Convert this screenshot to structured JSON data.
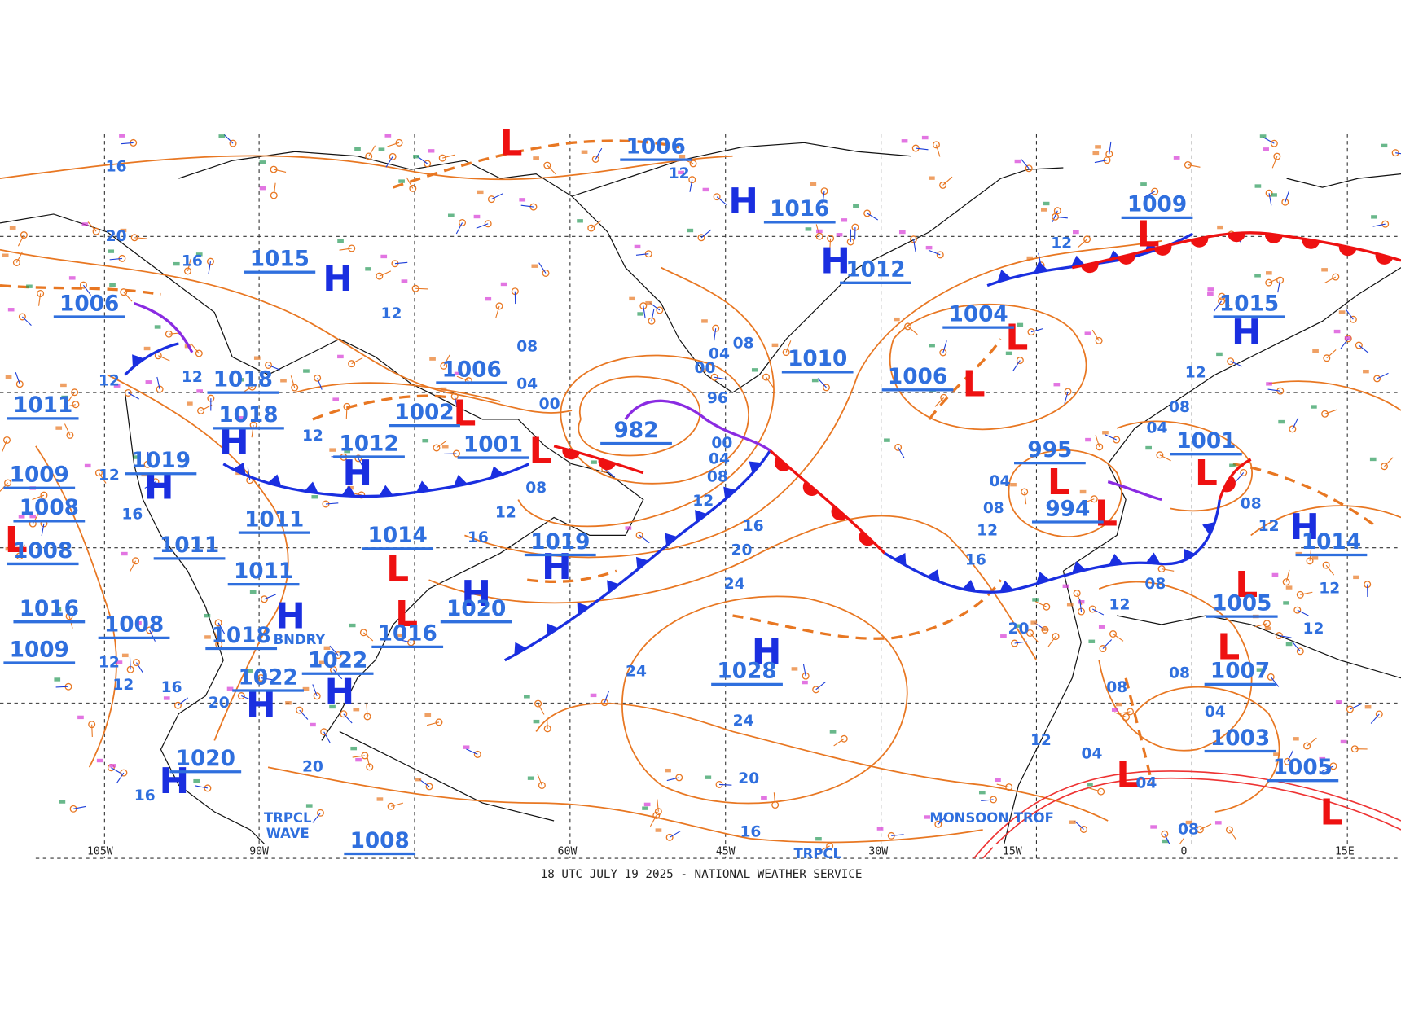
{
  "map": {
    "footer": "18 UTC JULY 19 2025 - NATIONAL WEATHER SERVICE",
    "longitude_labels": [
      "105W",
      "90W",
      "60W",
      "45W",
      "30W",
      "15W",
      "0",
      "15E"
    ],
    "centers": [
      "H",
      "H",
      "H",
      "H",
      "H",
      "H",
      "H",
      "H",
      "H",
      "H",
      "H",
      "H",
      "H",
      "H",
      "H",
      "L",
      "L",
      "L",
      "L",
      "L",
      "L",
      "L",
      "L",
      "L",
      "L",
      "L",
      "L",
      "L",
      "L",
      "L",
      "L"
    ],
    "pressure_labels": [
      "1006",
      "1016",
      "1015",
      "1012",
      "1009",
      "1015",
      "1006",
      "1004",
      "1010",
      "1006",
      "1006",
      "1018",
      "1011",
      "1002",
      "1018",
      "982",
      "1001",
      "1012",
      "1001",
      "995",
      "1019",
      "1009",
      "1008",
      "994",
      "1011",
      "1014",
      "1019",
      "1014",
      "1011",
      "1008",
      "1011",
      "1005",
      "1016",
      "1020",
      "1008",
      "1016",
      "1018",
      "1009",
      "1022",
      "1028",
      "1007",
      "1022",
      "1003",
      "1020",
      "1005",
      "1008"
    ],
    "isobar_labels": [
      "16",
      "12",
      "20",
      "16",
      "12",
      "12",
      "08",
      "04",
      "00",
      "08",
      "04",
      "12",
      "12",
      "12",
      "00",
      "96",
      "00",
      "04",
      "08",
      "08",
      "12",
      "12",
      "16",
      "16",
      "20",
      "24",
      "12",
      "16",
      "04",
      "08",
      "12",
      "16",
      "20",
      "12",
      "08",
      "08",
      "08",
      "04",
      "12",
      "04",
      "04",
      "08",
      "16",
      "20",
      "24",
      "24",
      "20",
      "16",
      "20",
      "12",
      "12",
      "16",
      "12",
      "08",
      "04",
      "08",
      "12",
      "12",
      "12"
    ],
    "annotations": [
      "TRPCL WAVE",
      "MONSOON TROF",
      "BNDRY",
      "TRPCL"
    ]
  }
}
